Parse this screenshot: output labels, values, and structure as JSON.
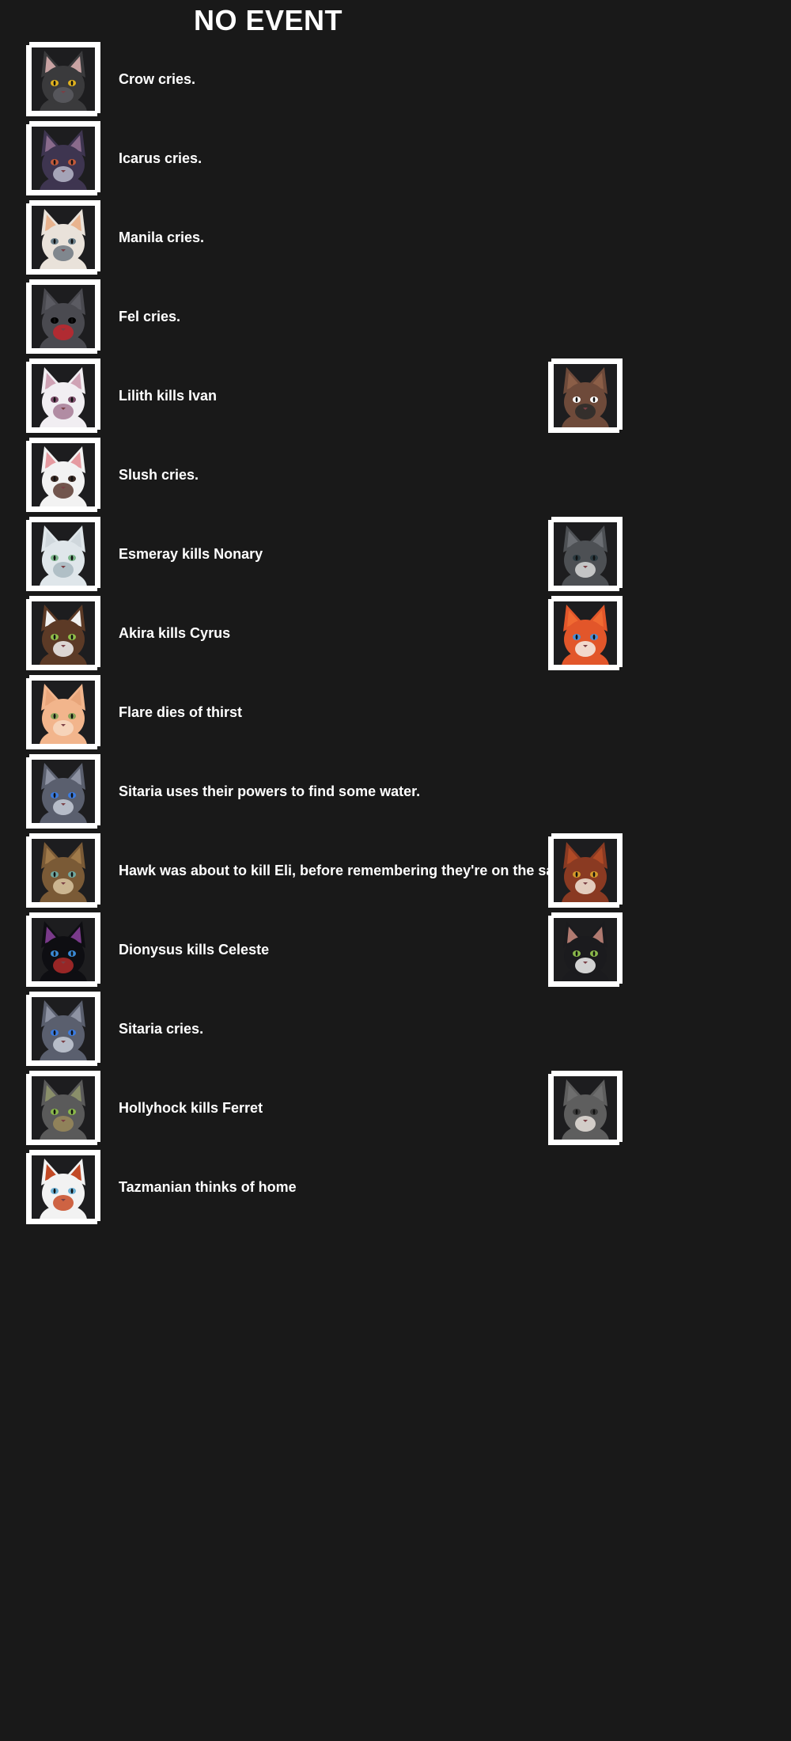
{
  "header": {
    "title": "NO EVENT"
  },
  "events": [
    {
      "text": "Crow cries.",
      "actor": {
        "name": "Crow",
        "fur": "#3a3a3c",
        "ear": "#c9a3a3",
        "eye": "#e0b21e",
        "accent": "#5c5c60"
      },
      "target": null
    },
    {
      "text": "Icarus cries.",
      "actor": {
        "name": "Icarus",
        "fur": "#3e3550",
        "ear": "#8a6b8c",
        "eye": "#c25a3a",
        "accent": "#b7b7c9"
      },
      "target": null
    },
    {
      "text": "Manila cries.",
      "actor": {
        "name": "Manila",
        "fur": "#e9e2da",
        "ear": "#e8b38e",
        "eye": "#6a7f8a",
        "accent": "#6d7780"
      },
      "target": null
    },
    {
      "text": "Fel cries.",
      "actor": {
        "name": "Fel",
        "fur": "#4a4a50",
        "ear": "#5b5b62",
        "eye": "#000000",
        "accent": "#c3262d"
      },
      "target": null
    },
    {
      "text": "Lilith kills Ivan",
      "actor": {
        "name": "Lilith",
        "fur": "#f1eef2",
        "ear": "#cfa3b5",
        "eye": "#7d4f6b",
        "accent": "#a67a95"
      },
      "target": {
        "name": "Ivan",
        "fur": "#6e4a3a",
        "ear": "#8b5e47",
        "eye": "#ffffff",
        "accent": "#2a2a2a"
      }
    },
    {
      "text": "Slush cries.",
      "actor": {
        "name": "Slush",
        "fur": "#f2f2f2",
        "ear": "#e59aa0",
        "eye": "#3a2a24",
        "accent": "#5b3a30"
      },
      "target": null
    },
    {
      "text": "Esmeray kills Nonary",
      "actor": {
        "name": "Esmeray",
        "fur": "#dfe6ea",
        "ear": "#cfd7dc",
        "eye": "#7bb58a",
        "accent": "#a8b7c0"
      },
      "target": {
        "name": "Nonary",
        "fur": "#4d5054",
        "ear": "#6b6e73",
        "eye": "#2b3a40",
        "accent": "#d9d9d9"
      }
    },
    {
      "text": "Akira kills Cyrus",
      "actor": {
        "name": "Akira",
        "fur": "#5c3a26",
        "ear": "#f0f0f0",
        "eye": "#8fbf4a",
        "accent": "#f2f2f2"
      },
      "target": {
        "name": "Cyrus",
        "fur": "#e2562a",
        "ear": "#f06a32",
        "eye": "#4a8fd6",
        "accent": "#f4f0ea"
      }
    },
    {
      "text": "Flare dies of thirst",
      "actor": {
        "name": "Flare",
        "fur": "#f2b58c",
        "ear": "#e8a57a",
        "eye": "#8aa35a",
        "accent": "#f7d9c2"
      },
      "target": null
    },
    {
      "text": "Sitaria uses their powers to find some water.",
      "actor": {
        "name": "Sitaria",
        "fur": "#5a5f6e",
        "ear": "#8e93a3",
        "eye": "#3a7be0",
        "accent": "#c7ccd8"
      },
      "target": null
    },
    {
      "text": "Hawk was about to kill Eli, before remembering they're on the same team",
      "actor": {
        "name": "Hawk",
        "fur": "#7a5a36",
        "ear": "#a07a4a",
        "eye": "#6fa8a0",
        "accent": "#d9c5a0"
      },
      "target": {
        "name": "Eli",
        "fur": "#8a3a22",
        "ear": "#b04a26",
        "eye": "#d49a2a",
        "accent": "#f2e6d8"
      }
    },
    {
      "text": "Dionysus kills Celeste",
      "actor": {
        "name": "Dionysus",
        "fur": "#0e0e12",
        "ear": "#7a3a8a",
        "eye": "#3a8ad6",
        "accent": "#b02a2a"
      },
      "target": {
        "name": "Celeste",
        "fur": "#1b1b1e",
        "ear": "#b07a70",
        "eye": "#8ab84a",
        "accent": "#f2f2f2"
      }
    },
    {
      "text": "Sitaria cries.",
      "actor": {
        "name": "Sitaria",
        "fur": "#5a5f6e",
        "ear": "#8e93a3",
        "eye": "#3a7be0",
        "accent": "#c7ccd8"
      },
      "target": null
    },
    {
      "text": "Hollyhock kills Ferret",
      "actor": {
        "name": "Hollyhock",
        "fur": "#5a5a5a",
        "ear": "#8a8f6a",
        "eye": "#8ab84a",
        "accent": "#9a8a5a"
      },
      "target": {
        "name": "Ferret",
        "fur": "#5e5e5e",
        "ear": "#6e6e6e",
        "eye": "#3a3a3a",
        "accent": "#e6e0da"
      }
    },
    {
      "text": "Tazmanian thinks of home",
      "actor": {
        "name": "Tazmanian",
        "fur": "#f2f2f2",
        "ear": "#c24a26",
        "eye": "#6fb3d6",
        "accent": "#c84a24"
      },
      "target": null
    }
  ]
}
